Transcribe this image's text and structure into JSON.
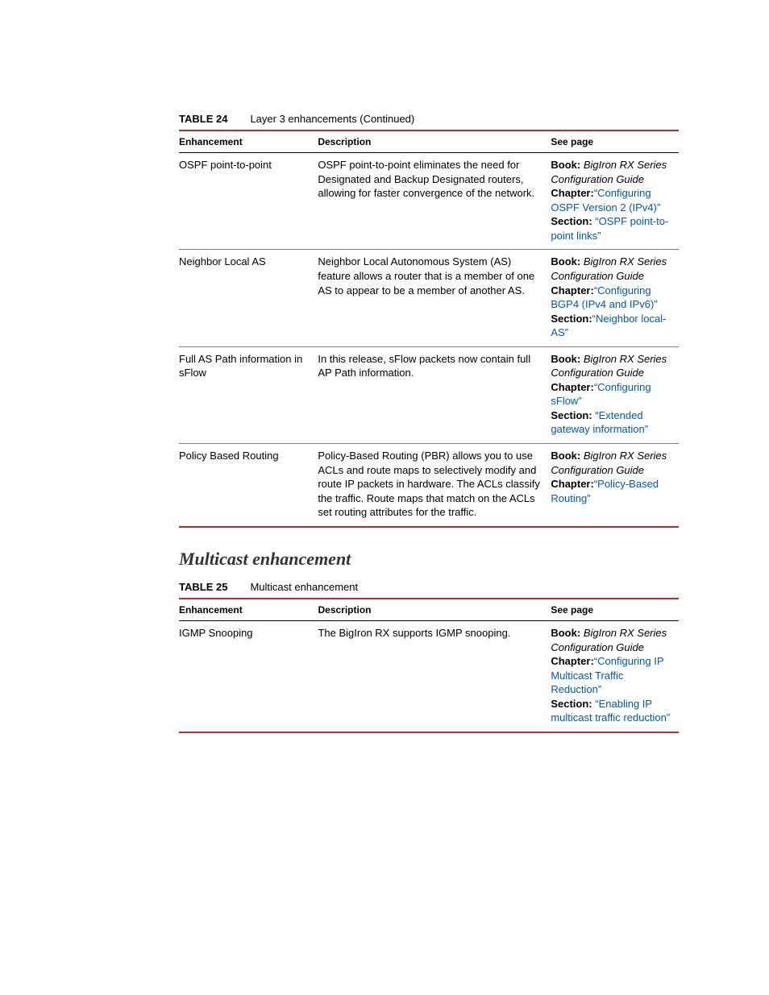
{
  "table24": {
    "number": "TABLE 24",
    "title": "Layer 3 enhancements (Continued)",
    "headers": [
      "Enhancement",
      "Description",
      "See page"
    ],
    "rows": [
      {
        "enh": "OSPF point-to-point",
        "desc": "OSPF point-to-point eliminates the need for Designated and Backup Designated routers, allowing for faster convergence of the network.",
        "book_label": "Book:",
        "book_val": "BigIron RX Series Configuration Guide",
        "chap_label": "Chapter:",
        "chap_link": "“Configuring OSPF Version 2 (IPv4)”",
        "sec_label": "Section:",
        "sec_link": "“OSPF point-to-point links”"
      },
      {
        "enh": "Neighbor Local AS",
        "desc": "Neighbor Local Autonomous System (AS) feature allows a router that is a member of one AS to appear to be a member of another AS.",
        "book_label": "Book:",
        "book_val": "BigIron RX Series Configuration Guide",
        "chap_label": "Chapter:",
        "chap_link": "“Configuring BGP4 (IPv4 and IPv6)”",
        "sec_label": "Section:",
        "sec_link": "“Neighbor local-AS”"
      },
      {
        "enh": "Full AS Path information in sFlow",
        "desc": "In this release, sFlow packets now contain full AP Path information.",
        "book_label": "Book:",
        "book_val": "BigIron RX Series Configuration Guide",
        "chap_label": "Chapter:",
        "chap_link": "“Configuring sFlow”",
        "sec_label": "Section:",
        "sec_link": "“Extended gateway information”"
      },
      {
        "enh": "Policy Based Routing",
        "desc": "Policy-Based Routing (PBR) allows you to use ACLs and route maps to selectively modify and route IP packets in hardware. The ACLs classify the traffic. Route maps that match on the ACLs set routing attributes for the traffic.",
        "book_label": "Book:",
        "book_val": "BigIron RX Series Configuration Guide",
        "chap_label": "Chapter:",
        "chap_link": "“Policy-Based Routing”",
        "sec_label": "",
        "sec_link": ""
      }
    ]
  },
  "section_heading": "Multicast enhancement",
  "table25": {
    "number": "TABLE 25",
    "title": "Multicast enhancement",
    "headers": [
      "Enhancement",
      "Description",
      "See page"
    ],
    "rows": [
      {
        "enh": "IGMP Snooping",
        "desc": "The BigIron RX supports IGMP snooping.",
        "book_label": "Book:",
        "book_val": "BigIron RX Series Configuration Guide",
        "chap_label": "Chapter:",
        "chap_link": "“Configuring IP Multicast Traffic Reduction”",
        "sec_label": "Section:",
        "sec_link": "“Enabling IP multicast traffic reduction”"
      }
    ]
  },
  "colors": {
    "rule": "#c1272d",
    "link": "#0059b3"
  }
}
